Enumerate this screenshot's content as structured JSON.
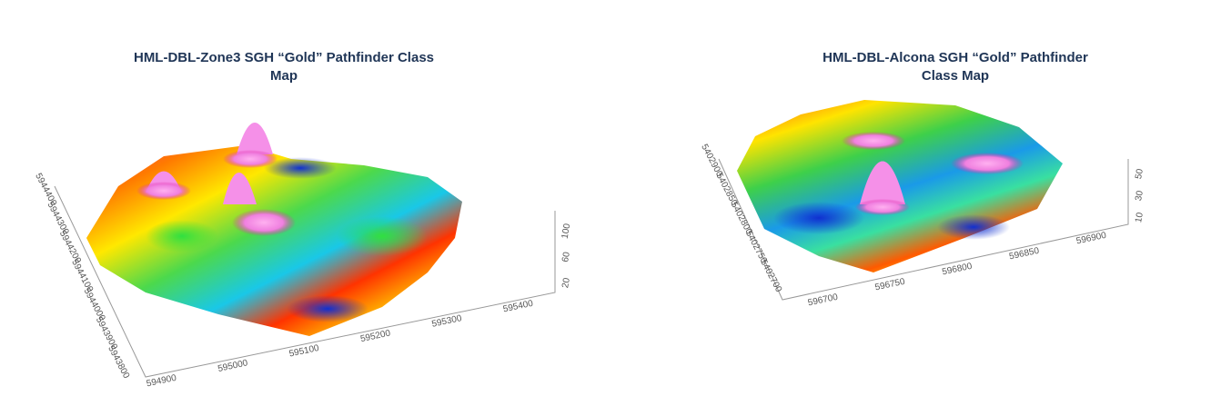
{
  "panels": [
    {
      "title": "HML-DBL-Zone3 SGH “Gold” Pathfinder Class Map",
      "x_labels": [
        "594900",
        "595000",
        "595100",
        "595200",
        "595300",
        "595400"
      ],
      "y_labels": [
        "5944400",
        "5944300",
        "5944200",
        "5944100",
        "5944000",
        "5943900",
        "5943800"
      ],
      "z_labels": [
        "20",
        "60",
        "100"
      ]
    },
    {
      "title": "HML-DBL-Alcona SGH “Gold” Pathfinder Class Map",
      "x_labels": [
        "596700",
        "596750",
        "596800",
        "596850",
        "596900"
      ],
      "y_labels": [
        "5402900",
        "5402850",
        "5402800",
        "5402750",
        "5402700"
      ],
      "z_labels": [
        "10",
        "30",
        "50"
      ]
    }
  ]
}
